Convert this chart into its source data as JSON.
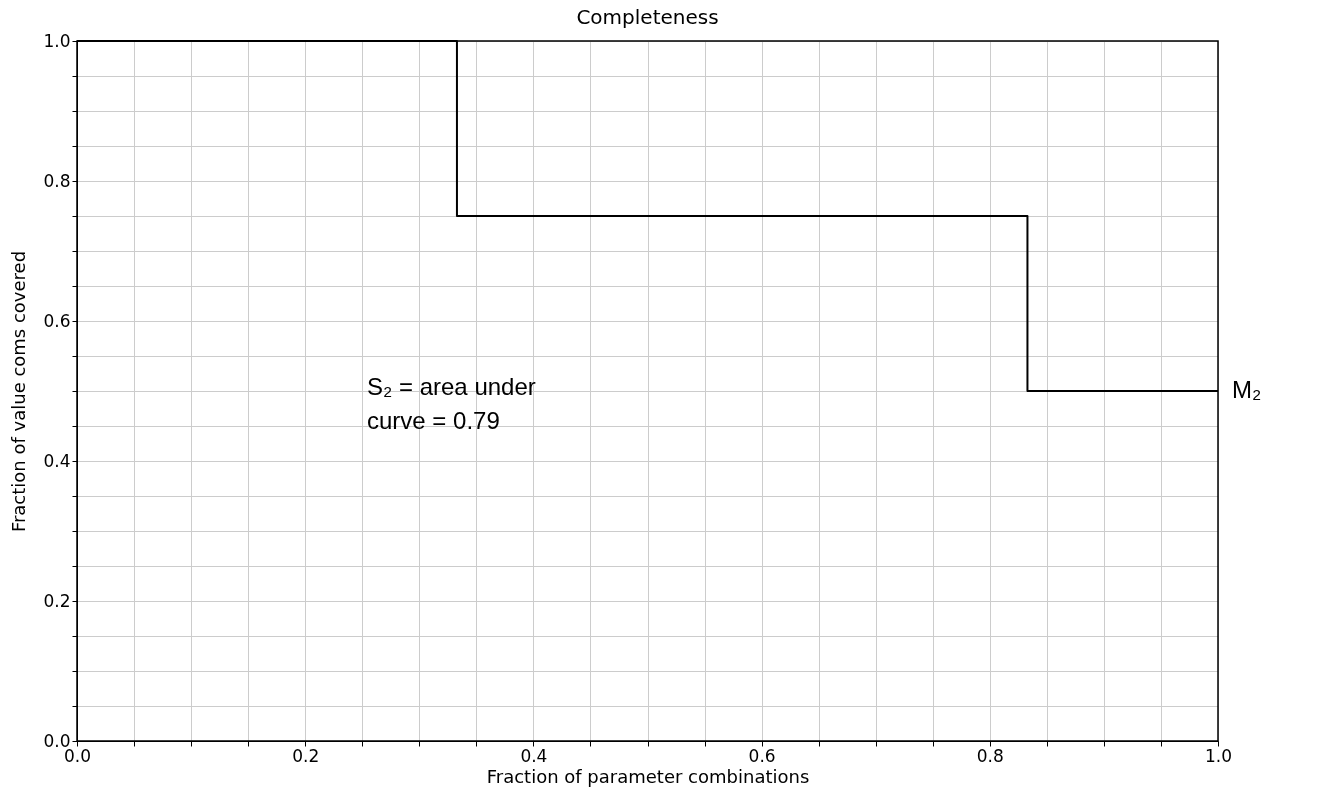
{
  "chart_data": {
    "type": "step",
    "title": "Completeness",
    "xlabel": "Fraction of parameter combinations",
    "ylabel": "Fraction of value coms covered",
    "series": [
      {
        "name": "M₂",
        "color": "#000000",
        "x": [
          0.0,
          0.333,
          0.833,
          1.0
        ],
        "values": [
          1.0,
          0.75,
          0.5,
          0.5
        ]
      }
    ],
    "xlim": [
      0.0,
      1.0
    ],
    "ylim": [
      0.0,
      1.0
    ],
    "xticks": [
      {
        "value": 0,
        "label": "0.0"
      },
      {
        "value": 0.05,
        "label": null
      },
      {
        "value": 0.1,
        "label": null
      },
      {
        "value": 0.15,
        "label": null
      },
      {
        "value": 0.2,
        "label": "0.2"
      },
      {
        "value": 0.25,
        "label": null
      },
      {
        "value": 0.3,
        "label": null
      },
      {
        "value": 0.35,
        "label": null
      },
      {
        "value": 0.4,
        "label": "0.4"
      },
      {
        "value": 0.45,
        "label": null
      },
      {
        "value": 0.5,
        "label": null
      },
      {
        "value": 0.55,
        "label": null
      },
      {
        "value": 0.6,
        "label": "0.6"
      },
      {
        "value": 0.65,
        "label": null
      },
      {
        "value": 0.7,
        "label": null
      },
      {
        "value": 0.75,
        "label": null
      },
      {
        "value": 0.8,
        "label": "0.8"
      },
      {
        "value": 0.85,
        "label": null
      },
      {
        "value": 0.9,
        "label": null
      },
      {
        "value": 0.95,
        "label": null
      },
      {
        "value": 1,
        "label": "1.0"
      }
    ],
    "yticks": [
      {
        "value": 0,
        "label": "0.0"
      },
      {
        "value": 0.05,
        "label": null
      },
      {
        "value": 0.1,
        "label": null
      },
      {
        "value": 0.15,
        "label": null
      },
      {
        "value": 0.2,
        "label": "0.2"
      },
      {
        "value": 0.25,
        "label": null
      },
      {
        "value": 0.3,
        "label": null
      },
      {
        "value": 0.35,
        "label": null
      },
      {
        "value": 0.4,
        "label": "0.4"
      },
      {
        "value": 0.45,
        "label": null
      },
      {
        "value": 0.5,
        "label": null
      },
      {
        "value": 0.55,
        "label": null
      },
      {
        "value": 0.6,
        "label": "0.6"
      },
      {
        "value": 0.65,
        "label": null
      },
      {
        "value": 0.7,
        "label": null
      },
      {
        "value": 0.75,
        "label": null
      },
      {
        "value": 0.8,
        "label": "0.8"
      },
      {
        "value": 0.85,
        "label": null
      },
      {
        "value": 0.9,
        "label": null
      },
      {
        "value": 0.95,
        "label": null
      },
      {
        "value": 1,
        "label": "1.0"
      }
    ],
    "annotations": [
      "S₂ = area under curve = 0.79"
    ],
    "grid": true,
    "marker": "none",
    "line_style": "solid"
  }
}
